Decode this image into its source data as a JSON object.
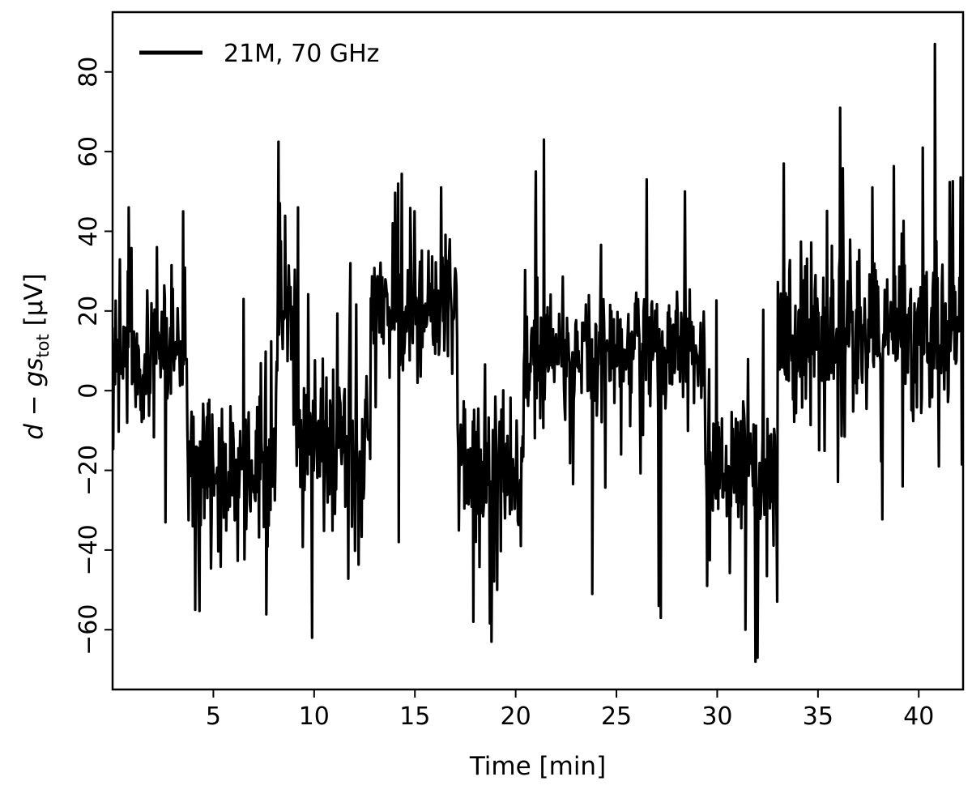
{
  "chart_data": {
    "type": "line",
    "title": "",
    "xlabel": "Time [min]",
    "ylabel_parts": {
      "main": "d − gs",
      "sub": "tot",
      "unit": " [μV]"
    },
    "xlim": [
      0,
      42.2
    ],
    "ylim": [
      -75,
      95
    ],
    "xticks": [
      5,
      10,
      15,
      20,
      25,
      30,
      35,
      40
    ],
    "xtick_labels": [
      "5",
      "10",
      "15",
      "20",
      "25",
      "30",
      "35",
      "40"
    ],
    "yticks": [
      -60,
      -40,
      -20,
      0,
      20,
      40,
      60,
      80
    ],
    "ytick_labels": [
      "−60",
      "−40",
      "−20",
      "0",
      "20",
      "40",
      "60",
      "80"
    ],
    "grid": false,
    "legend_position": "top-left",
    "series": [
      {
        "name": "21M, 70 GHz",
        "color": "#000000",
        "segments": [
          {
            "x": [
              0,
              3.7
            ],
            "level": 10,
            "spread": 13
          },
          {
            "x": [
              3.7,
              8.1
            ],
            "level": -20,
            "spread": 13
          },
          {
            "x": [
              8.1,
              9.1
            ],
            "level": 15,
            "spread": 15
          },
          {
            "x": [
              9.1,
              12.8
            ],
            "level": -12,
            "spread": 14
          },
          {
            "x": [
              12.8,
              17.1
            ],
            "level": 20,
            "spread": 12
          },
          {
            "x": [
              17.1,
              20.4
            ],
            "level": -18,
            "spread": 13
          },
          {
            "x": [
              20.4,
              29.4
            ],
            "level": 10,
            "spread": 12
          },
          {
            "x": [
              29.4,
              33
            ],
            "level": -20,
            "spread": 13
          },
          {
            "x": [
              33,
              42.2
            ],
            "level": 15,
            "spread": 14
          }
        ],
        "peaks": [
          {
            "x": 0.8,
            "y": 46
          },
          {
            "x": 2.2,
            "y": 36
          },
          {
            "x": 3.5,
            "y": 45
          },
          {
            "x": 4.1,
            "y": -55
          },
          {
            "x": 6.5,
            "y": 23
          },
          {
            "x": 8.3,
            "y": 47
          },
          {
            "x": 9.2,
            "y": 46
          },
          {
            "x": 9.9,
            "y": -62
          },
          {
            "x": 11.8,
            "y": 32
          },
          {
            "x": 13.9,
            "y": 42
          },
          {
            "x": 14.2,
            "y": -38
          },
          {
            "x": 16.3,
            "y": 51
          },
          {
            "x": 17.9,
            "y": -58
          },
          {
            "x": 18.8,
            "y": -63
          },
          {
            "x": 21.4,
            "y": 63
          },
          {
            "x": 21.0,
            "y": 55
          },
          {
            "x": 23.8,
            "y": -51
          },
          {
            "x": 27.2,
            "y": -57
          },
          {
            "x": 27.1,
            "y": -54
          },
          {
            "x": 26.5,
            "y": 53
          },
          {
            "x": 28.4,
            "y": 50
          },
          {
            "x": 29.5,
            "y": -49
          },
          {
            "x": 31.4,
            "y": -60
          },
          {
            "x": 31.9,
            "y": -68
          },
          {
            "x": 32.0,
            "y": -67
          },
          {
            "x": 33.3,
            "y": 57
          },
          {
            "x": 36.1,
            "y": 71
          },
          {
            "x": 37.7,
            "y": 51
          },
          {
            "x": 39.2,
            "y": -24
          },
          {
            "x": 40.2,
            "y": 61
          },
          {
            "x": 40.8,
            "y": 87
          },
          {
            "x": 41.0,
            "y": -19
          }
        ]
      }
    ]
  }
}
